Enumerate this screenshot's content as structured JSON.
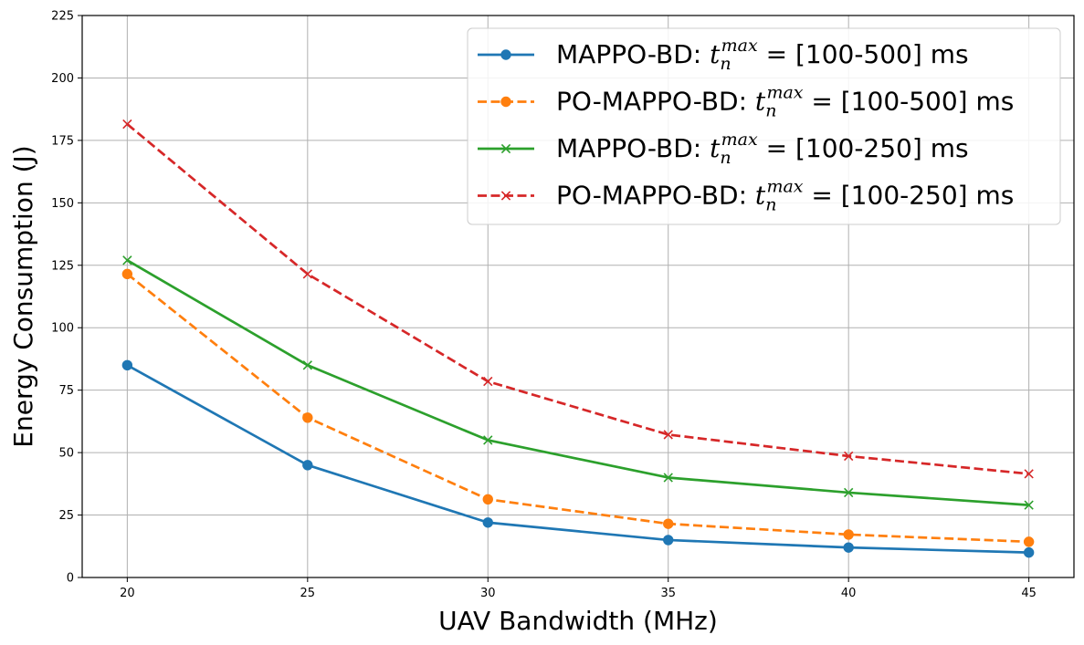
{
  "chart_data": {
    "type": "line",
    "title": "",
    "xlabel": "UAV Bandwidth (MHz)",
    "ylabel": "Energy Consumption (J)",
    "x": [
      20,
      25,
      30,
      35,
      40,
      45
    ],
    "xlim": [
      18.75,
      46.25
    ],
    "ylim": [
      0,
      225
    ],
    "xticks": [
      "20",
      "25",
      "30",
      "35",
      "40",
      "45"
    ],
    "yticks": [
      "0",
      "25",
      "50",
      "75",
      "100",
      "125",
      "150",
      "175",
      "200",
      "225"
    ],
    "grid": true,
    "legend_position": "top-right",
    "series": [
      {
        "name": "MAPPO-BD: t_n^max = [100-500] ms",
        "prefix": "MAPPO-BD: ",
        "var": "t",
        "sub": "n",
        "sup": "max",
        "suffix": " = [100-500] ms",
        "color": "#1f77b4",
        "linestyle": "solid",
        "marker": "circle",
        "values": [
          85,
          45,
          22,
          15,
          12,
          10
        ]
      },
      {
        "name": "PO-MAPPO-BD: t_n^max = [100-500] ms",
        "prefix": "PO-MAPPO-BD: ",
        "var": "t",
        "sub": "n",
        "sup": "max",
        "suffix": " = [100-500] ms",
        "color": "#ff7f0e",
        "linestyle": "dashed",
        "marker": "circle",
        "values": [
          121.5,
          64,
          31.3,
          21.5,
          17.2,
          14.3
        ]
      },
      {
        "name": "MAPPO-BD: t_n^max = [100-250] ms",
        "prefix": "MAPPO-BD: ",
        "var": "t",
        "sub": "n",
        "sup": "max",
        "suffix": " = [100-250] ms",
        "color": "#2ca02c",
        "linestyle": "solid",
        "marker": "x",
        "values": [
          127,
          85,
          55,
          40,
          34,
          29
        ]
      },
      {
        "name": "PO-MAPPO-BD: t_n^max = [100-250] ms",
        "prefix": "PO-MAPPO-BD: ",
        "var": "t",
        "sub": "n",
        "sup": "max",
        "suffix": " = [100-250] ms",
        "color": "#d62728",
        "linestyle": "dashed",
        "marker": "x",
        "values": [
          181.5,
          121.5,
          78.5,
          57.2,
          48.6,
          41.5
        ]
      }
    ]
  }
}
